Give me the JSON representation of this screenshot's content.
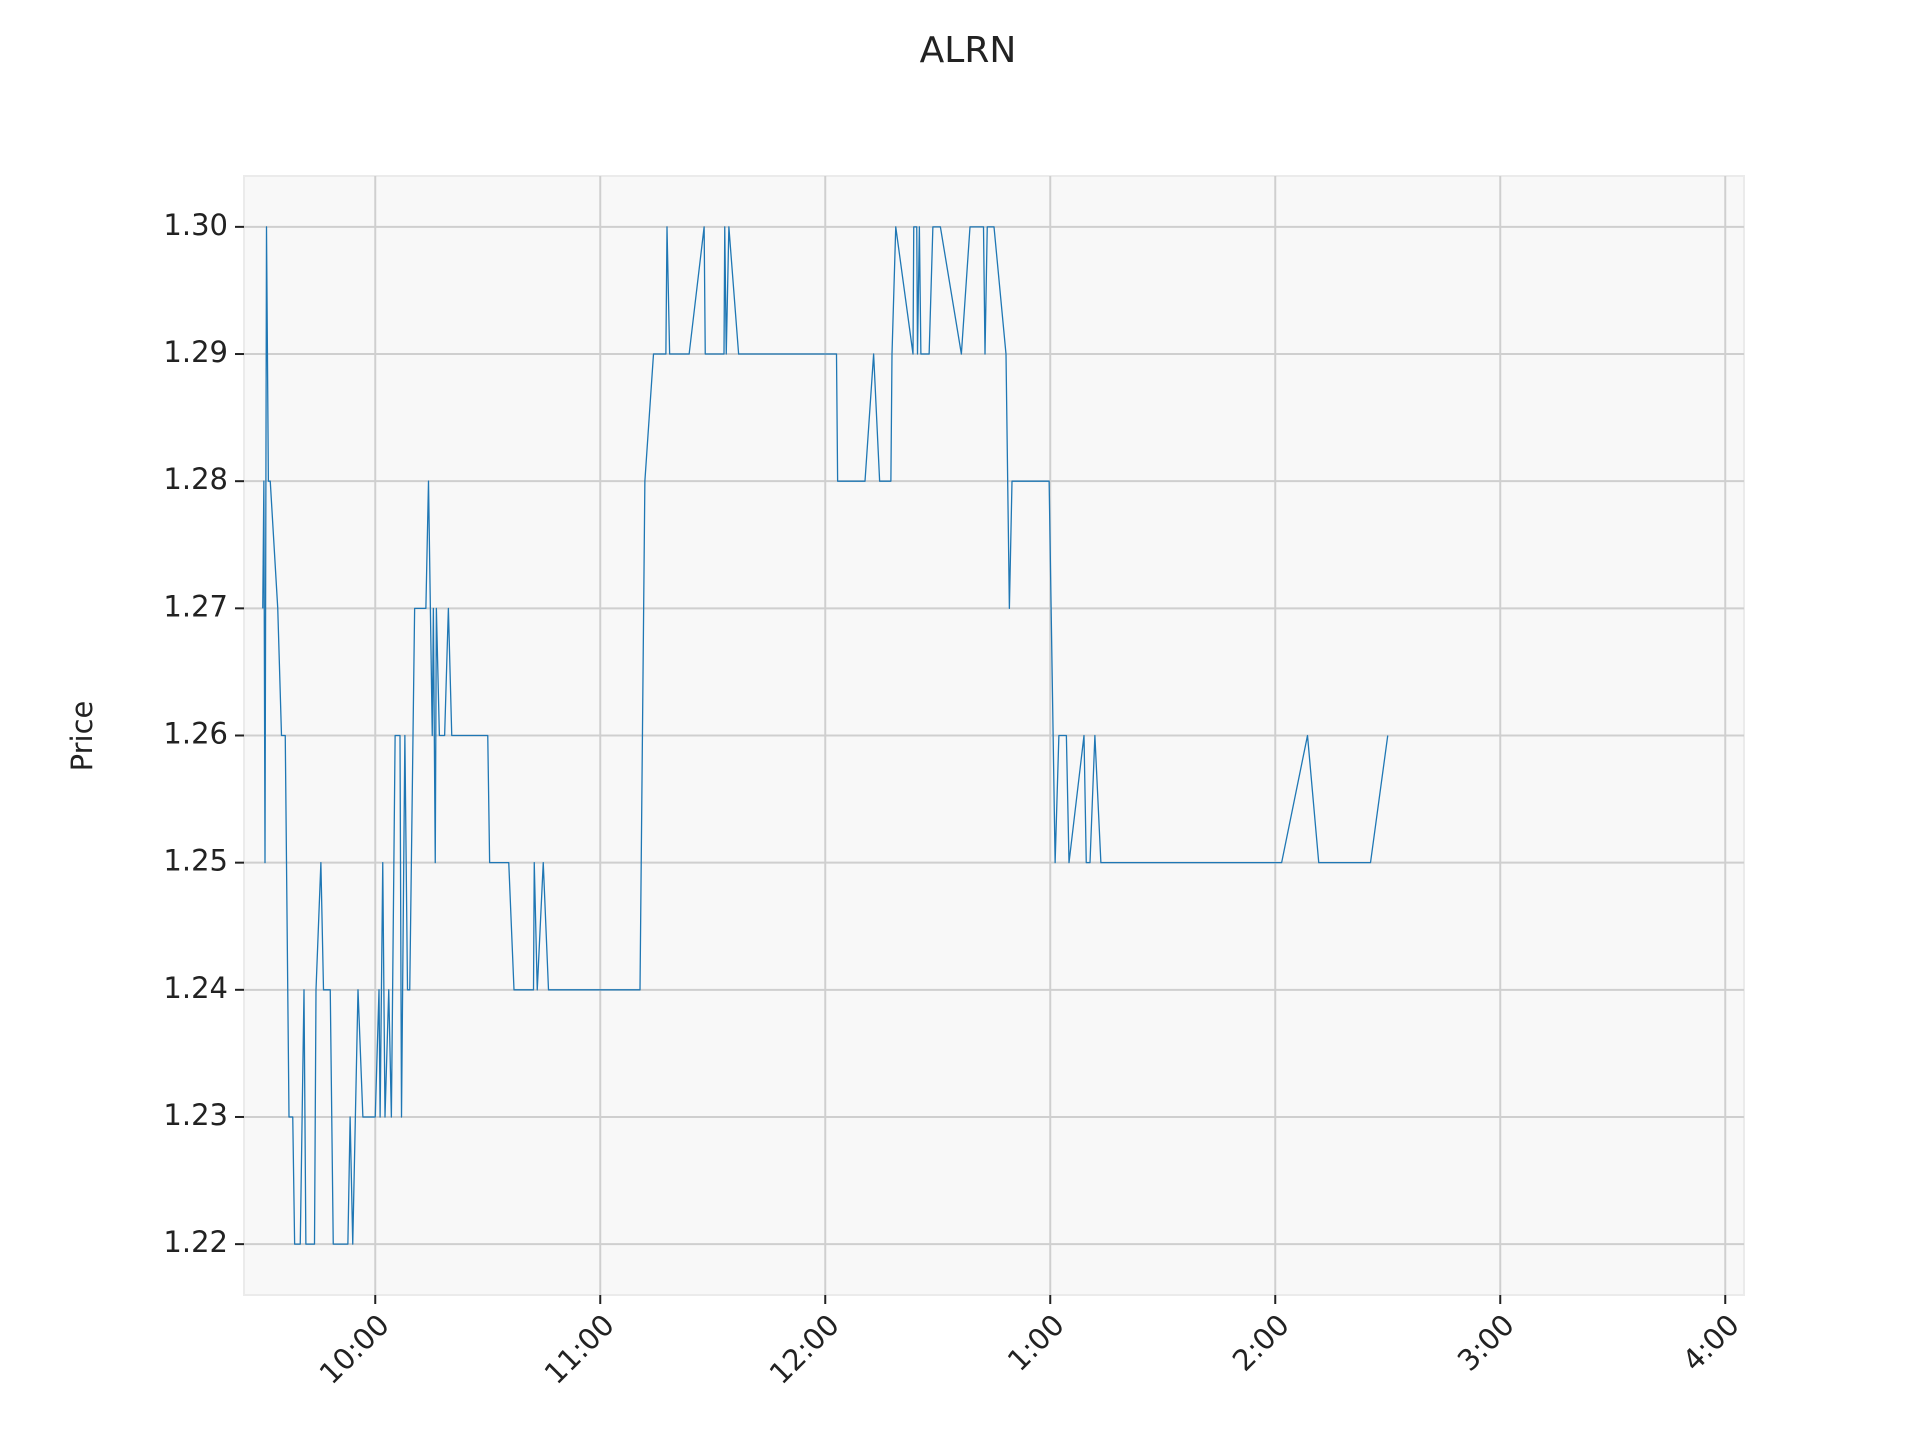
{
  "chart_data": {
    "type": "line",
    "title": "ALRN",
    "y_label": "Price",
    "x": [
      570,
      570.3,
      570.6,
      571,
      571.5,
      572,
      574,
      575,
      576,
      577,
      578,
      578.5,
      580,
      581,
      581.5,
      583.8,
      584.2,
      585.5,
      586.2,
      588,
      588.8,
      592.7,
      593.3,
      594,
      595.4,
      596.7,
      600,
      601,
      601.3,
      602,
      602.6,
      603.6,
      604.3,
      605.3,
      606.6,
      607,
      607.9,
      608.6,
      609.2,
      610.5,
      613.5,
      614.2,
      615.2,
      615.5,
      616,
      616.3,
      617.1,
      618.5,
      619.5,
      620.4,
      622.4,
      623.5,
      630,
      630.5,
      635.6,
      637,
      642.2,
      642.4,
      643.2,
      644.8,
      646.2,
      670.6,
      671.9,
      674.2,
      677.5,
      677.8,
      678.5,
      683.7,
      687.7,
      688,
      693,
      693.2,
      693.6,
      694.3,
      696.9,
      723,
      723.3,
      730.6,
      732.9,
      734.5,
      737.5,
      737.8,
      738.8,
      743.4,
      743.6,
      744.4,
      744.6,
      745.1,
      745.5,
      747.7,
      748.7,
      750.7,
      756.3,
      758.6,
      762.2,
      762.6,
      763.2,
      764.4,
      765,
      768.2,
      769.1,
      769.8,
      779.7,
      781.3,
      782.3,
      784.3,
      785,
      789,
      789.6,
      790.6,
      791.9,
      793.5,
      841.7,
      848.6,
      851.6,
      865.4,
      870
    ],
    "series": [
      {
        "name": "Price",
        "color": "#1f77b4",
        "values": [
          1.27,
          1.28,
          1.25,
          1.3,
          1.28,
          1.28,
          1.27,
          1.26,
          1.26,
          1.23,
          1.23,
          1.22,
          1.22,
          1.24,
          1.22,
          1.22,
          1.24,
          1.25,
          1.24,
          1.24,
          1.22,
          1.22,
          1.23,
          1.22,
          1.24,
          1.23,
          1.23,
          1.24,
          1.23,
          1.25,
          1.23,
          1.24,
          1.23,
          1.26,
          1.26,
          1.23,
          1.26,
          1.24,
          1.24,
          1.27,
          1.27,
          1.28,
          1.26,
          1.27,
          1.25,
          1.27,
          1.26,
          1.26,
          1.27,
          1.26,
          1.26,
          1.26,
          1.26,
          1.25,
          1.25,
          1.24,
          1.24,
          1.25,
          1.24,
          1.25,
          1.24,
          1.24,
          1.28,
          1.29,
          1.29,
          1.3,
          1.29,
          1.29,
          1.3,
          1.29,
          1.29,
          1.3,
          1.29,
          1.3,
          1.29,
          1.29,
          1.28,
          1.28,
          1.29,
          1.28,
          1.28,
          1.29,
          1.3,
          1.29,
          1.3,
          1.3,
          1.29,
          1.3,
          1.29,
          1.29,
          1.3,
          1.3,
          1.29,
          1.3,
          1.3,
          1.29,
          1.3,
          1.3,
          1.3,
          1.29,
          1.27,
          1.28,
          1.28,
          1.25,
          1.26,
          1.26,
          1.25,
          1.26,
          1.25,
          1.25,
          1.26,
          1.25,
          1.25,
          1.26,
          1.25,
          1.25,
          1.26
        ]
      }
    ],
    "xlim": [
      565,
      965
    ],
    "xticks": [
      {
        "value": 600,
        "label": "10:00"
      },
      {
        "value": 660,
        "label": "11:00"
      },
      {
        "value": 720,
        "label": "12:00"
      },
      {
        "value": 780,
        "label": "1:00"
      },
      {
        "value": 840,
        "label": "2:00"
      },
      {
        "value": 900,
        "label": "3:00"
      },
      {
        "value": 960,
        "label": "4:00"
      }
    ],
    "ylim": [
      1.216,
      1.304
    ],
    "yticks": [
      1.22,
      1.23,
      1.24,
      1.25,
      1.26,
      1.27,
      1.28,
      1.29,
      {
        "value": 1.3,
        "label": "1.30"
      }
    ],
    "grid": true
  }
}
